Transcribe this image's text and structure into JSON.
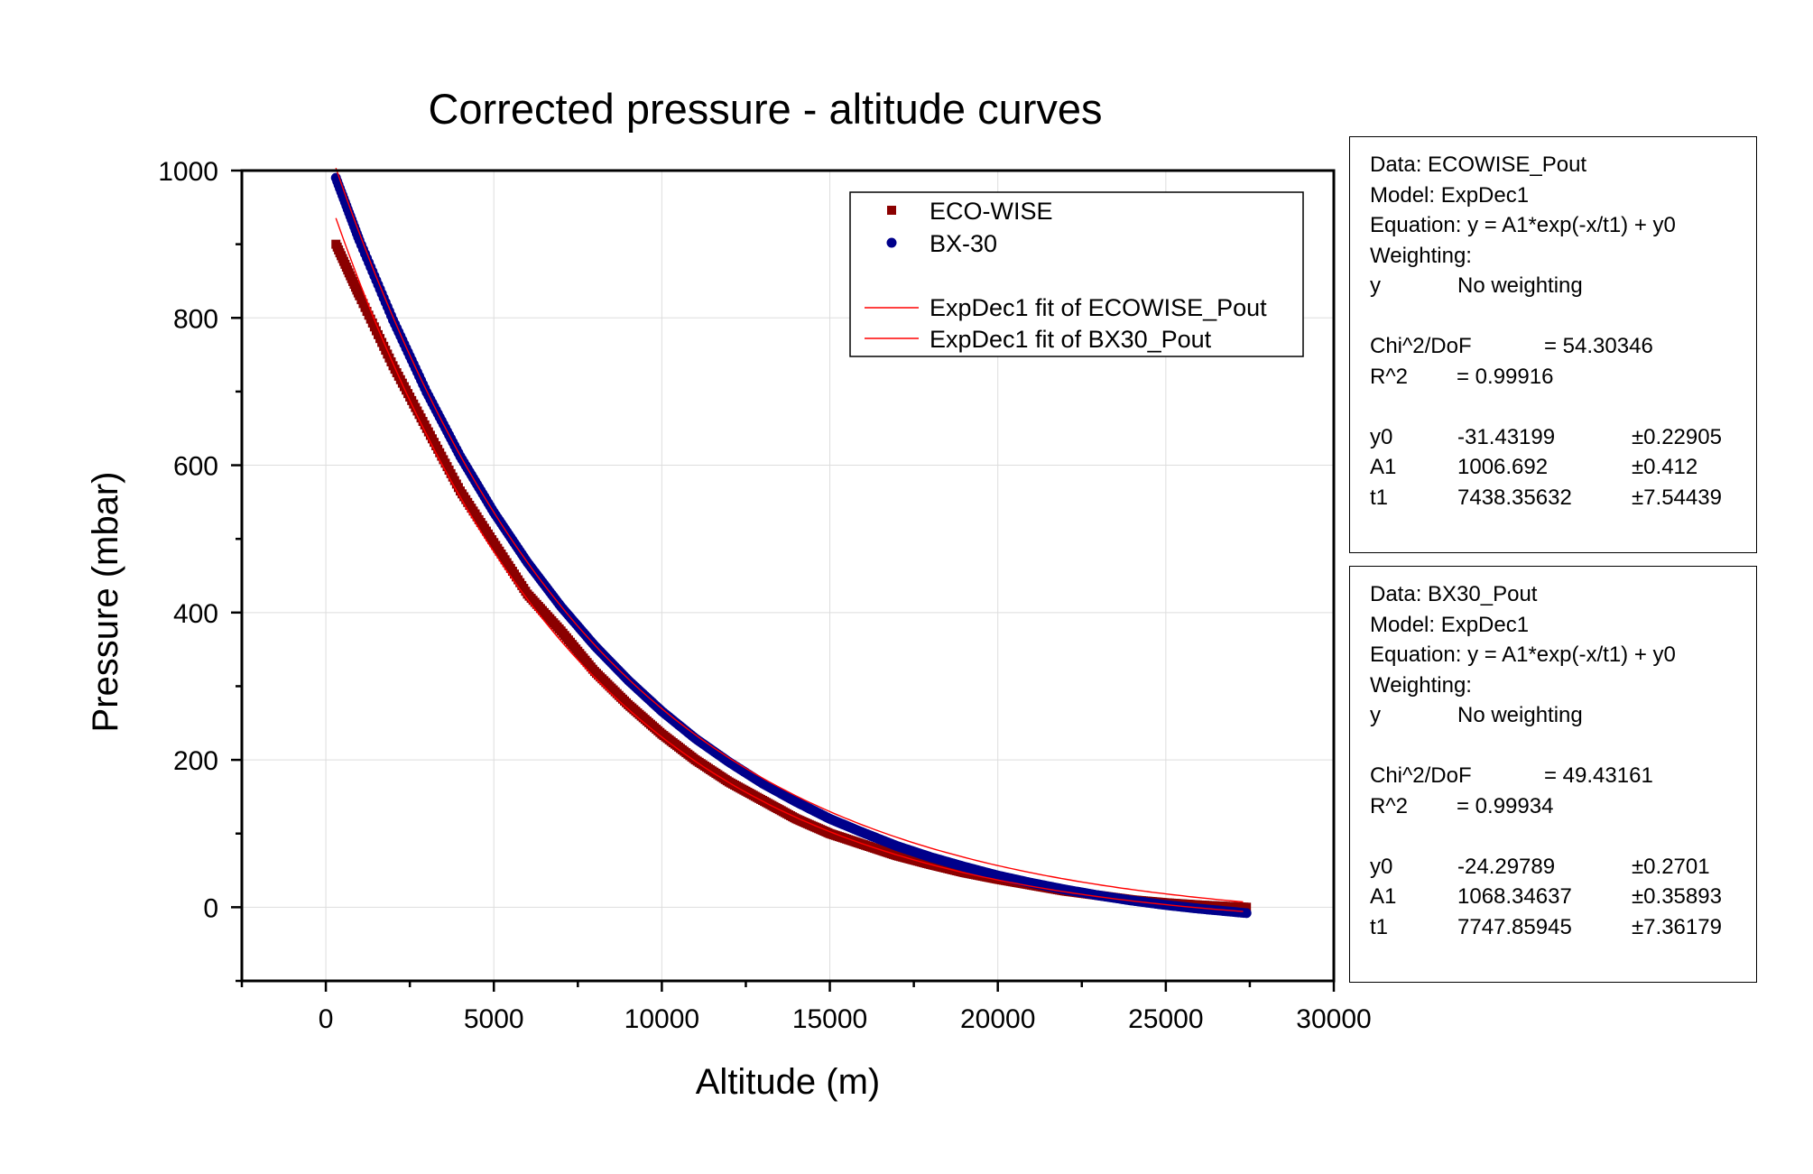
{
  "chart_data": {
    "type": "scatter",
    "title": "Corrected pressure - altitude curves",
    "xlabel": "Altitude (m)",
    "ylabel": "Pressure (mbar)",
    "xlim": [
      -2500,
      30000
    ],
    "ylim": [
      -100,
      1000
    ],
    "x_ticks": [
      0,
      5000,
      10000,
      15000,
      20000,
      25000,
      30000
    ],
    "y_ticks": [
      0,
      200,
      400,
      600,
      800,
      1000
    ],
    "grid": true,
    "legend_position": "top-right",
    "legend": {
      "eco": "ECO-WISE",
      "bx": "BX-30",
      "fit_eco": "ExpDec1 fit of ECOWISE_Pout",
      "fit_bx": "ExpDec1 fit of BX30_Pout"
    },
    "series": [
      {
        "name": "ECO-WISE",
        "marker": "square",
        "color": "#8b0000",
        "x": [
          300,
          1000,
          2000,
          3000,
          4000,
          5000,
          6000,
          7000,
          8000,
          9000,
          10000,
          11000,
          12000,
          13000,
          14000,
          15000,
          16000,
          17000,
          18000,
          19000,
          20000,
          21000,
          22000,
          23000,
          24000,
          25000,
          26000,
          27400
        ],
        "y": [
          900,
          830,
          735,
          650,
          565,
          495,
          425,
          375,
          320,
          275,
          235,
          200,
          170,
          145,
          120,
          100,
          85,
          70,
          58,
          47,
          38,
          30,
          22,
          16,
          10,
          6,
          3,
          0
        ]
      },
      {
        "name": "BX-30",
        "marker": "circle",
        "color": "#00008b",
        "x": [
          300,
          1000,
          2000,
          3000,
          4000,
          5000,
          6000,
          7000,
          8000,
          9000,
          10000,
          11000,
          12000,
          13000,
          14000,
          15000,
          16000,
          17000,
          18000,
          19000,
          20000,
          21000,
          22000,
          23000,
          24000,
          25000,
          26000,
          27400
        ],
        "y": [
          990,
          905,
          797,
          699,
          612,
          536,
          468,
          408,
          355,
          308,
          266,
          229,
          197,
          168,
          143,
          120,
          101,
          83,
          68,
          55,
          43,
          33,
          24,
          16,
          9,
          3,
          -2,
          -8
        ]
      }
    ],
    "fit_curves": [
      {
        "name": "ExpDec1 fit of ECOWISE_Pout",
        "color": "#ff0000",
        "y0": -31.43199,
        "A1": 1006.692,
        "t1": 7438.35632,
        "x_range": [
          300,
          27400
        ]
      },
      {
        "name": "ExpDec1 fit of BX30_Pout",
        "color": "#ff0000",
        "y0": -24.29789,
        "A1": 1068.34637,
        "t1": 7747.85945,
        "x_range": [
          300,
          27400
        ]
      }
    ]
  },
  "fit_reports": [
    {
      "data": "Data: ECOWISE_Pout",
      "model": "Model: ExpDec1",
      "equation": "Equation: y = A1*exp(-x/t1) + y0",
      "weighting": "Weighting:",
      "weight_var": "y",
      "weight_val": "No weighting",
      "chi_label": "Chi^2/DoF",
      "chi_val": "= 54.30346",
      "r2_label": "R^2",
      "r2_val": "=  0.99916",
      "params": [
        {
          "name": "y0",
          "value": "-31.43199",
          "err": "±0.22905"
        },
        {
          "name": "A1",
          "value": "1006.692",
          "err": "±0.412"
        },
        {
          "name": "t1",
          "value": "7438.35632",
          "err": "±7.54439"
        }
      ]
    },
    {
      "data": "Data: BX30_Pout",
      "model": "Model: ExpDec1",
      "equation": "Equation: y = A1*exp(-x/t1) + y0",
      "weighting": "Weighting:",
      "weight_var": "y",
      "weight_val": "No weighting",
      "chi_label": "Chi^2/DoF",
      "chi_val": "= 49.43161",
      "r2_label": "R^2",
      "r2_val": "=  0.99934",
      "params": [
        {
          "name": "y0",
          "value": "-24.29789",
          "err": "±0.2701"
        },
        {
          "name": "A1",
          "value": "1068.34637",
          "err": "±0.35893"
        },
        {
          "name": "t1",
          "value": "7747.85945",
          "err": "±7.36179"
        }
      ]
    }
  ]
}
